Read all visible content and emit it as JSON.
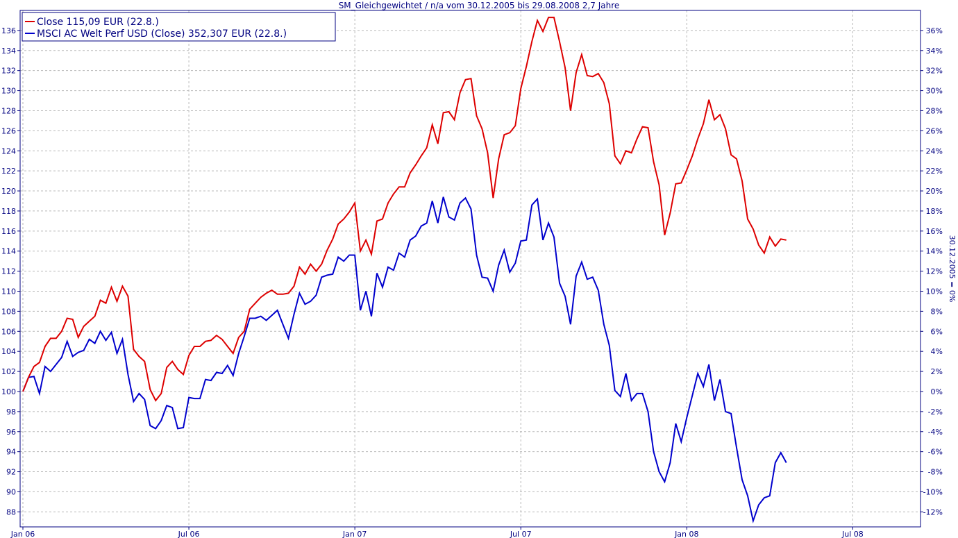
{
  "chart_data": {
    "type": "line",
    "title": "SM_Gleichgewichtet / n/a vom 30.12.2005 bis 29.08.2008 2,7 Jahre",
    "y_left_ticks": [
      88,
      90,
      92,
      94,
      96,
      98,
      100,
      102,
      104,
      106,
      108,
      110,
      112,
      114,
      116,
      118,
      120,
      122,
      124,
      126,
      128,
      130,
      132,
      134,
      136
    ],
    "y_right_ticks": [
      -12,
      -10,
      -8,
      -6,
      -4,
      -2,
      0,
      2,
      4,
      6,
      8,
      10,
      12,
      14,
      16,
      18,
      20,
      22,
      24,
      26,
      28,
      30,
      32,
      34,
      36
    ],
    "y_right_label": "30.12.2005 = 0%",
    "ylim": [
      86.5,
      138
    ],
    "x_ticks": [
      {
        "t": 0,
        "label": "Jan 06"
      },
      {
        "t": 6,
        "label": "Jul 06"
      },
      {
        "t": 12,
        "label": "Jan 07"
      },
      {
        "t": 18,
        "label": "Jul 07"
      },
      {
        "t": 24,
        "label": "Jan 08"
      },
      {
        "t": 30,
        "label": "Jul 08"
      }
    ],
    "xlim": [
      -0.1,
      32.45
    ],
    "x_unit": "months since Jan 2006",
    "grid": true,
    "legend_position": "top-left",
    "series": [
      {
        "name": "Close 115,09 EUR (22.8.)",
        "color": "#dd0000",
        "points": [
          [
            0.0,
            100.0
          ],
          [
            0.2,
            101.4
          ],
          [
            0.4,
            102.5
          ],
          [
            0.6,
            102.9
          ],
          [
            0.8,
            104.5
          ],
          [
            1.0,
            105.3
          ],
          [
            1.2,
            105.3
          ],
          [
            1.4,
            106.0
          ],
          [
            1.6,
            107.3
          ],
          [
            1.8,
            107.2
          ],
          [
            2.0,
            105.4
          ],
          [
            2.2,
            106.5
          ],
          [
            2.4,
            107.0
          ],
          [
            2.6,
            107.5
          ],
          [
            2.8,
            109.1
          ],
          [
            3.0,
            108.8
          ],
          [
            3.2,
            110.4
          ],
          [
            3.4,
            109.0
          ],
          [
            3.6,
            110.5
          ],
          [
            3.8,
            109.5
          ],
          [
            4.0,
            104.2
          ],
          [
            4.2,
            103.5
          ],
          [
            4.4,
            103.0
          ],
          [
            4.6,
            100.2
          ],
          [
            4.8,
            99.1
          ],
          [
            5.0,
            99.8
          ],
          [
            5.2,
            102.4
          ],
          [
            5.4,
            103.0
          ],
          [
            5.6,
            102.2
          ],
          [
            5.8,
            101.7
          ],
          [
            6.0,
            103.6
          ],
          [
            6.2,
            104.5
          ],
          [
            6.4,
            104.5
          ],
          [
            6.6,
            105.0
          ],
          [
            6.8,
            105.1
          ],
          [
            7.0,
            105.6
          ],
          [
            7.2,
            105.2
          ],
          [
            7.4,
            104.5
          ],
          [
            7.6,
            103.8
          ],
          [
            7.8,
            105.4
          ],
          [
            8.0,
            106.0
          ],
          [
            8.2,
            108.2
          ],
          [
            8.4,
            108.8
          ],
          [
            8.6,
            109.4
          ],
          [
            8.8,
            109.8
          ],
          [
            9.0,
            110.1
          ],
          [
            9.2,
            109.7
          ],
          [
            9.4,
            109.7
          ],
          [
            9.6,
            109.8
          ],
          [
            9.8,
            110.5
          ],
          [
            10.0,
            112.4
          ],
          [
            10.2,
            111.7
          ],
          [
            10.4,
            112.7
          ],
          [
            10.6,
            112.0
          ],
          [
            10.8,
            112.7
          ],
          [
            11.0,
            114.1
          ],
          [
            11.2,
            115.2
          ],
          [
            11.4,
            116.7
          ],
          [
            11.6,
            117.2
          ],
          [
            11.8,
            117.9
          ],
          [
            12.0,
            118.8
          ],
          [
            12.2,
            114.0
          ],
          [
            12.4,
            115.1
          ],
          [
            12.6,
            113.7
          ],
          [
            12.8,
            117.0
          ],
          [
            13.0,
            117.2
          ],
          [
            13.2,
            118.8
          ],
          [
            13.4,
            119.7
          ],
          [
            13.6,
            120.4
          ],
          [
            13.8,
            120.4
          ],
          [
            14.0,
            121.8
          ],
          [
            14.2,
            122.6
          ],
          [
            14.4,
            123.5
          ],
          [
            14.6,
            124.3
          ],
          [
            14.8,
            126.6
          ],
          [
            15.0,
            124.7
          ],
          [
            15.2,
            127.8
          ],
          [
            15.4,
            127.9
          ],
          [
            15.6,
            127.1
          ],
          [
            15.8,
            129.8
          ],
          [
            16.0,
            131.1
          ],
          [
            16.2,
            131.2
          ],
          [
            16.4,
            127.5
          ],
          [
            16.6,
            126.2
          ],
          [
            16.8,
            123.8
          ],
          [
            17.0,
            119.3
          ],
          [
            17.2,
            123.2
          ],
          [
            17.4,
            125.6
          ],
          [
            17.6,
            125.8
          ],
          [
            17.8,
            126.5
          ],
          [
            18.0,
            130.2
          ],
          [
            18.2,
            132.4
          ],
          [
            18.4,
            134.9
          ],
          [
            18.6,
            137.0
          ],
          [
            18.8,
            135.9
          ],
          [
            19.0,
            137.3
          ],
          [
            19.2,
            137.3
          ],
          [
            19.4,
            134.9
          ],
          [
            19.6,
            132.3
          ],
          [
            19.8,
            128.0
          ],
          [
            20.0,
            131.8
          ],
          [
            20.2,
            133.6
          ],
          [
            20.4,
            131.5
          ],
          [
            20.6,
            131.4
          ],
          [
            20.8,
            131.7
          ],
          [
            21.0,
            130.8
          ],
          [
            21.2,
            128.7
          ],
          [
            21.4,
            123.5
          ],
          [
            21.6,
            122.7
          ],
          [
            21.8,
            124.0
          ],
          [
            22.0,
            123.8
          ],
          [
            22.2,
            125.2
          ],
          [
            22.4,
            126.4
          ],
          [
            22.6,
            126.3
          ],
          [
            22.8,
            122.9
          ],
          [
            23.0,
            120.6
          ],
          [
            23.2,
            115.6
          ],
          [
            23.4,
            117.8
          ],
          [
            23.6,
            120.7
          ],
          [
            23.8,
            120.8
          ],
          [
            24.0,
            122.1
          ],
          [
            24.2,
            123.5
          ],
          [
            24.4,
            125.2
          ],
          [
            24.6,
            126.7
          ],
          [
            24.8,
            129.1
          ],
          [
            25.0,
            127.1
          ],
          [
            25.2,
            127.6
          ],
          [
            25.4,
            126.2
          ],
          [
            25.6,
            123.6
          ],
          [
            25.8,
            123.2
          ],
          [
            26.0,
            121.0
          ],
          [
            26.2,
            117.2
          ],
          [
            26.4,
            116.2
          ],
          [
            26.6,
            114.6
          ],
          [
            26.8,
            113.8
          ],
          [
            27.0,
            115.4
          ],
          [
            27.2,
            114.5
          ],
          [
            27.4,
            115.2
          ],
          [
            27.6,
            115.1
          ]
        ]
      },
      {
        "name": "MSCI AC Welt Perf USD (Close) 352,307 EUR (22.8.)",
        "color": "#0000cc",
        "points": [
          [
            0.0,
            100.0
          ],
          [
            0.2,
            101.4
          ],
          [
            0.4,
            101.5
          ],
          [
            0.6,
            99.8
          ],
          [
            0.8,
            102.5
          ],
          [
            1.0,
            102.0
          ],
          [
            1.2,
            102.7
          ],
          [
            1.4,
            103.4
          ],
          [
            1.6,
            105.0
          ],
          [
            1.8,
            103.5
          ],
          [
            2.0,
            103.9
          ],
          [
            2.2,
            104.1
          ],
          [
            2.4,
            105.2
          ],
          [
            2.6,
            104.8
          ],
          [
            2.8,
            106.0
          ],
          [
            3.0,
            105.1
          ],
          [
            3.2,
            105.9
          ],
          [
            3.4,
            103.8
          ],
          [
            3.6,
            105.2
          ],
          [
            3.8,
            101.7
          ],
          [
            4.0,
            99.0
          ],
          [
            4.2,
            99.8
          ],
          [
            4.4,
            99.2
          ],
          [
            4.6,
            96.6
          ],
          [
            4.8,
            96.3
          ],
          [
            5.0,
            97.1
          ],
          [
            5.2,
            98.6
          ],
          [
            5.4,
            98.4
          ],
          [
            5.6,
            96.3
          ],
          [
            5.8,
            96.4
          ],
          [
            6.0,
            99.4
          ],
          [
            6.2,
            99.3
          ],
          [
            6.4,
            99.3
          ],
          [
            6.6,
            101.2
          ],
          [
            6.8,
            101.1
          ],
          [
            7.0,
            101.9
          ],
          [
            7.2,
            101.8
          ],
          [
            7.4,
            102.6
          ],
          [
            7.6,
            101.6
          ],
          [
            7.8,
            103.8
          ],
          [
            8.0,
            105.5
          ],
          [
            8.2,
            107.3
          ],
          [
            8.4,
            107.3
          ],
          [
            8.6,
            107.5
          ],
          [
            8.8,
            107.1
          ],
          [
            9.0,
            107.6
          ],
          [
            9.2,
            108.1
          ],
          [
            9.4,
            106.7
          ],
          [
            9.6,
            105.3
          ],
          [
            9.8,
            107.7
          ],
          [
            10.0,
            109.8
          ],
          [
            10.2,
            108.7
          ],
          [
            10.4,
            109.0
          ],
          [
            10.6,
            109.6
          ],
          [
            10.8,
            111.4
          ],
          [
            11.0,
            111.6
          ],
          [
            11.2,
            111.7
          ],
          [
            11.4,
            113.4
          ],
          [
            11.6,
            113.0
          ],
          [
            11.8,
            113.6
          ],
          [
            12.0,
            113.6
          ],
          [
            12.2,
            108.1
          ],
          [
            12.4,
            110.0
          ],
          [
            12.6,
            107.5
          ],
          [
            12.8,
            111.8
          ],
          [
            13.0,
            110.4
          ],
          [
            13.2,
            112.4
          ],
          [
            13.4,
            112.1
          ],
          [
            13.6,
            113.8
          ],
          [
            13.8,
            113.4
          ],
          [
            14.0,
            115.1
          ],
          [
            14.2,
            115.5
          ],
          [
            14.4,
            116.5
          ],
          [
            14.6,
            116.8
          ],
          [
            14.8,
            119.0
          ],
          [
            15.0,
            116.8
          ],
          [
            15.2,
            119.4
          ],
          [
            15.4,
            117.4
          ],
          [
            15.6,
            117.1
          ],
          [
            15.8,
            118.8
          ],
          [
            16.0,
            119.3
          ],
          [
            16.2,
            118.2
          ],
          [
            16.4,
            113.6
          ],
          [
            16.6,
            111.4
          ],
          [
            16.8,
            111.3
          ],
          [
            17.0,
            110.0
          ],
          [
            17.2,
            112.6
          ],
          [
            17.4,
            114.1
          ],
          [
            17.6,
            111.9
          ],
          [
            17.8,
            112.8
          ],
          [
            18.0,
            115.0
          ],
          [
            18.2,
            115.1
          ],
          [
            18.4,
            118.6
          ],
          [
            18.6,
            119.2
          ],
          [
            18.8,
            115.1
          ],
          [
            19.0,
            116.8
          ],
          [
            19.2,
            115.4
          ],
          [
            19.4,
            110.8
          ],
          [
            19.6,
            109.5
          ],
          [
            19.8,
            106.7
          ],
          [
            20.0,
            111.5
          ],
          [
            20.2,
            112.9
          ],
          [
            20.4,
            111.2
          ],
          [
            20.6,
            111.4
          ],
          [
            20.8,
            110.1
          ],
          [
            21.0,
            106.7
          ],
          [
            21.2,
            104.6
          ],
          [
            21.4,
            100.1
          ],
          [
            21.6,
            99.5
          ],
          [
            21.8,
            101.8
          ],
          [
            22.0,
            99.1
          ],
          [
            22.2,
            99.8
          ],
          [
            22.4,
            99.8
          ],
          [
            22.6,
            98.0
          ],
          [
            22.8,
            94.0
          ],
          [
            23.0,
            92.0
          ],
          [
            23.2,
            91.0
          ],
          [
            23.4,
            92.9
          ],
          [
            23.6,
            96.8
          ],
          [
            23.8,
            95.0
          ],
          [
            24.0,
            97.4
          ],
          [
            24.2,
            99.6
          ],
          [
            24.4,
            101.8
          ],
          [
            24.6,
            100.5
          ],
          [
            24.8,
            102.7
          ],
          [
            25.0,
            99.1
          ],
          [
            25.2,
            101.2
          ],
          [
            25.4,
            98.0
          ],
          [
            25.6,
            97.8
          ],
          [
            25.8,
            94.4
          ],
          [
            26.0,
            91.2
          ],
          [
            26.2,
            89.6
          ],
          [
            26.4,
            87.1
          ],
          [
            26.6,
            88.7
          ],
          [
            26.8,
            89.4
          ],
          [
            27.0,
            89.6
          ],
          [
            27.2,
            92.9
          ],
          [
            27.4,
            93.9
          ],
          [
            27.6,
            92.9
          ]
        ]
      }
    ]
  }
}
